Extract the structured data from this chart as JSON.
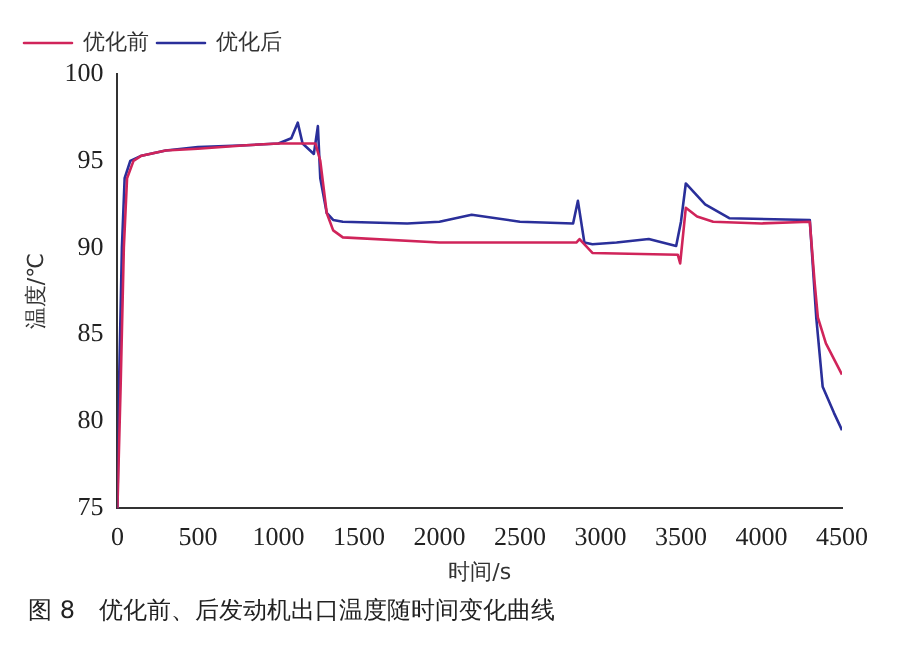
{
  "chart_data": {
    "type": "line",
    "xlabel": "时间/s",
    "ylabel": "温度/℃",
    "xlim": [
      0,
      4500
    ],
    "xticks": [
      0,
      500,
      1000,
      1500,
      2000,
      2500,
      3000,
      3500,
      4000,
      4500
    ],
    "ylim": [
      75,
      100
    ],
    "yticks": [
      75,
      80,
      85,
      90,
      95,
      100
    ],
    "legend": "top left",
    "grid": false,
    "marker": "none",
    "line_style": "solid",
    "annotations": [
      "图 8　优化前、后发动机出口温度随时间变化曲线"
    ],
    "series": [
      {
        "name": "优化前",
        "color": "#d0245a",
        "x": [
          0,
          20,
          40,
          60,
          100,
          150,
          300,
          500,
          800,
          1000,
          1230,
          1260,
          1300,
          1340,
          1400,
          2000,
          2850,
          2870,
          2950,
          3480,
          3495,
          3530,
          3600,
          3700,
          4000,
          4300,
          4330,
          4350,
          4400,
          4500
        ],
        "values": [
          75,
          82,
          90,
          94,
          95,
          95.3,
          95.6,
          95.7,
          95.9,
          96,
          96,
          95,
          92,
          91,
          90.6,
          90.3,
          90.3,
          90.5,
          89.7,
          89.6,
          89.1,
          92.3,
          91.8,
          91.5,
          91.4,
          91.5,
          88,
          86,
          84.5,
          82.7
        ]
      },
      {
        "name": "优化后",
        "color": "#2a2f9a",
        "x": [
          0,
          10,
          28,
          45,
          80,
          150,
          300,
          500,
          800,
          1000,
          1080,
          1120,
          1150,
          1220,
          1245,
          1260,
          1300,
          1340,
          1400,
          1800,
          2000,
          2200,
          2500,
          2830,
          2860,
          2900,
          2950,
          3100,
          3300,
          3470,
          3500,
          3530,
          3600,
          3650,
          3800,
          4300,
          4340,
          4380,
          4450,
          4500
        ],
        "values": [
          75,
          82,
          90,
          94,
          95,
          95.3,
          95.6,
          95.8,
          95.9,
          96,
          96.3,
          97.2,
          96,
          95.4,
          97,
          94,
          92,
          91.6,
          91.5,
          91.4,
          91.5,
          91.9,
          91.5,
          91.4,
          92.7,
          90.3,
          90.2,
          90.3,
          90.5,
          90.1,
          91.5,
          93.7,
          93,
          92.5,
          91.7,
          91.6,
          86,
          82,
          80.5,
          79.5
        ]
      }
    ]
  }
}
